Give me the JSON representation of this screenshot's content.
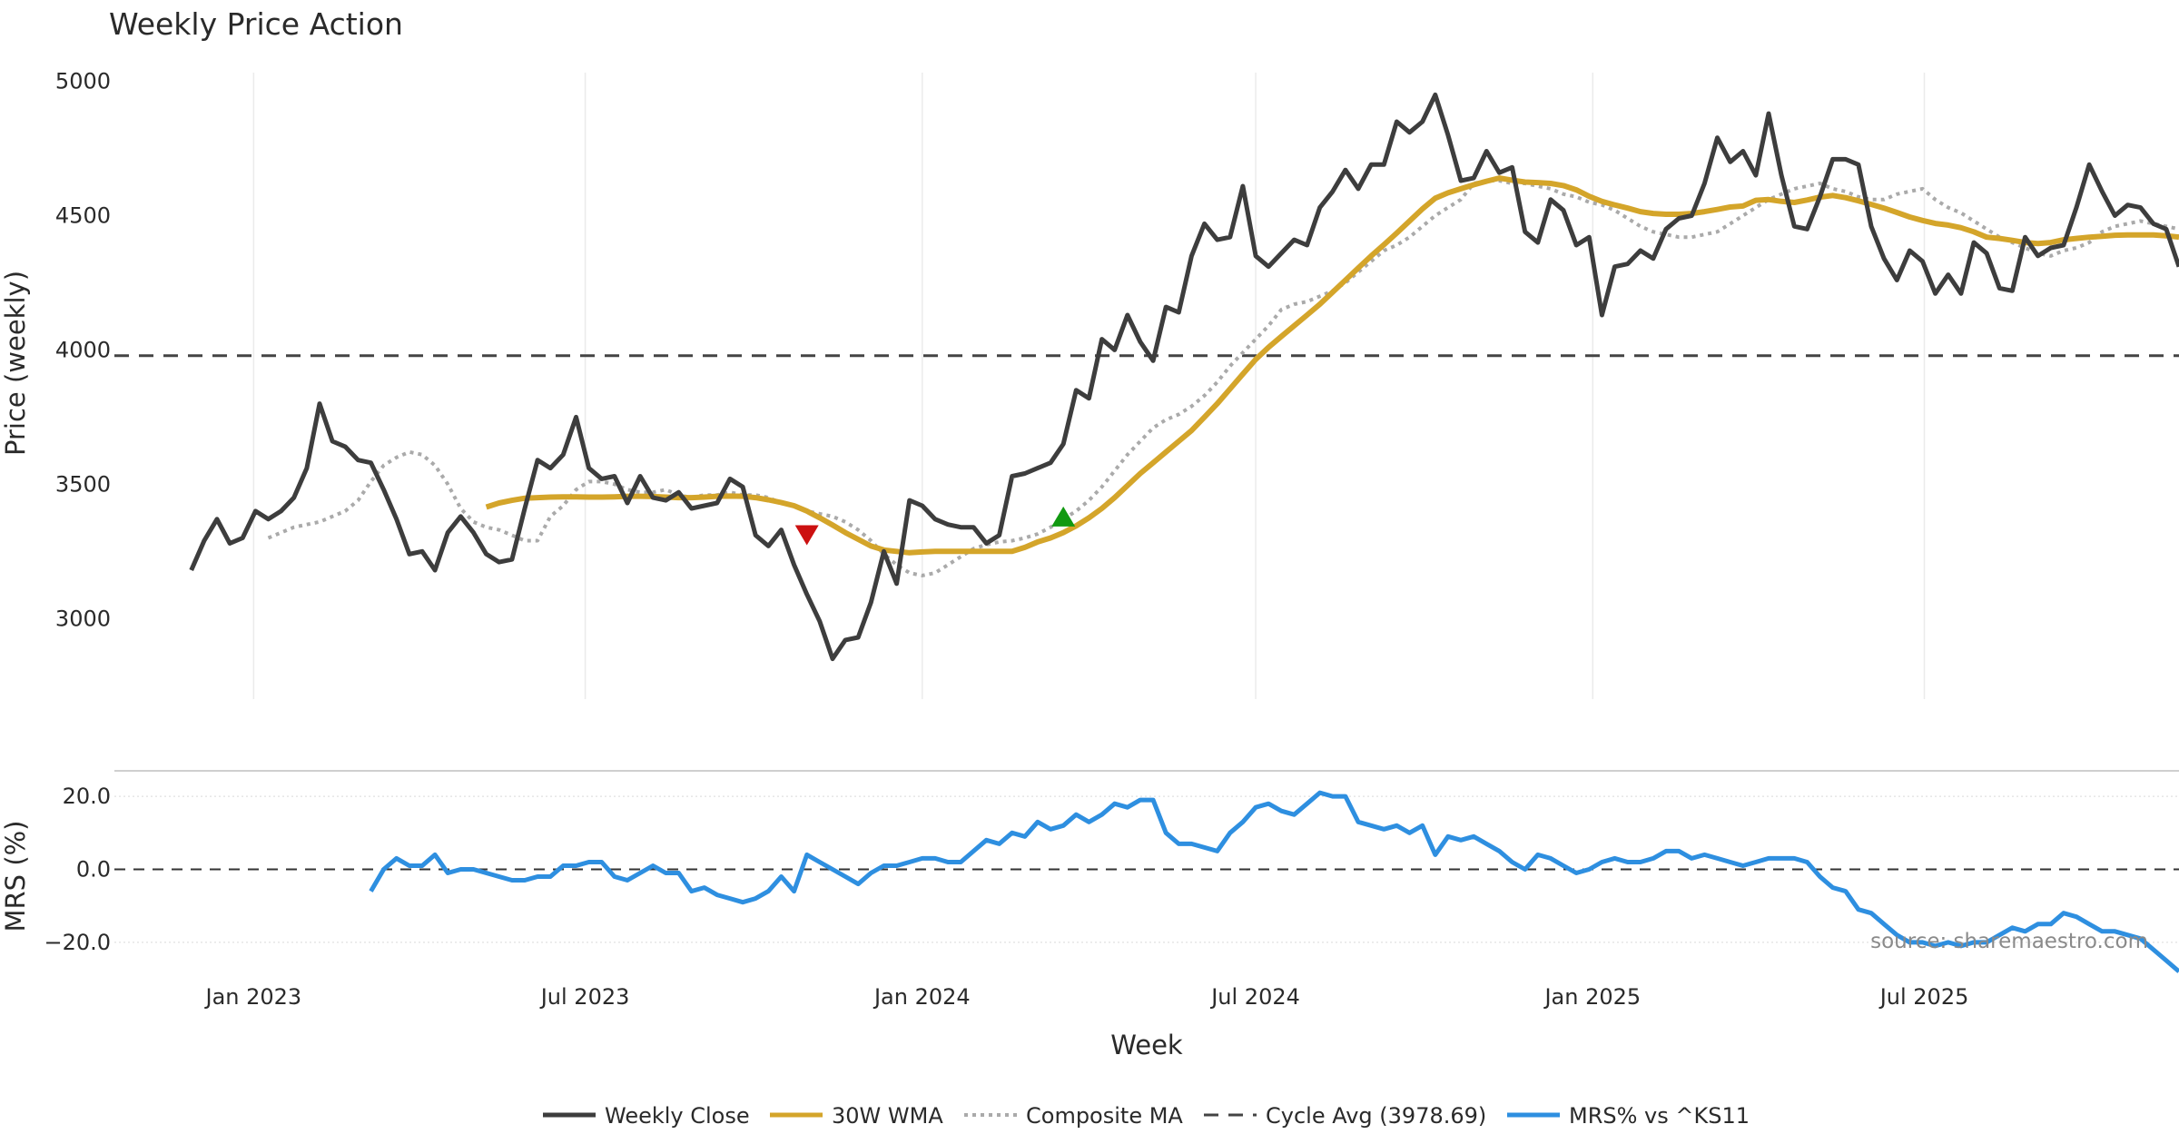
{
  "chart_data": {
    "type": "line",
    "title": "Weekly Price Action",
    "xlabel": "Week",
    "x_ticks": [
      "Jan 2023",
      "Jul 2023",
      "Jan 2024",
      "Jul 2024",
      "Jan 2025",
      "Jul 2025"
    ],
    "x_range": [
      "2022-10-17",
      "2025-11-17"
    ],
    "source_note": "source: sharemaestro.com",
    "colors": {
      "close": "#3d3d3d",
      "wma": "#d4a52a",
      "composite": "#aaaaaa",
      "cycle": "#444444",
      "mrs": "#2e8fe0",
      "sell": "#cc1111",
      "buy": "#119911"
    },
    "price_panel": {
      "ylabel": "Price (weekly)",
      "ylim": [
        2700,
        5100
      ],
      "yticks": [
        3000,
        3500,
        4000,
        4500,
        5000
      ],
      "cycle_avg": 3978.69,
      "series": [
        {
          "name": "Weekly Close",
          "values": [
            3180,
            3290,
            3370,
            3280,
            3300,
            3400,
            3370,
            3400,
            3450,
            3560,
            3800,
            3660,
            3640,
            3590,
            3580,
            3480,
            3370,
            3240,
            3250,
            3180,
            3320,
            3380,
            3320,
            3240,
            3210,
            3220,
            3410,
            3590,
            3560,
            3610,
            3750,
            3560,
            3520,
            3530,
            3430,
            3530,
            3450,
            3440,
            3470,
            3410,
            3420,
            3430,
            3520,
            3490,
            3310,
            3270,
            3330,
            3200,
            3090,
            2990,
            2850,
            2920,
            2930,
            3060,
            3250,
            3130,
            3440,
            3420,
            3370,
            3350,
            3340,
            3340,
            3280,
            3310,
            3530,
            3540,
            3560,
            3580,
            3650,
            3850,
            3820,
            4040,
            4000,
            4130,
            4030,
            3960,
            4160,
            4140,
            4350,
            4470,
            4410,
            4420,
            4610,
            4350,
            4310,
            4360,
            4410,
            4390,
            4530,
            4590,
            4670,
            4600,
            4690,
            4690,
            4850,
            4810,
            4850,
            4950,
            4800,
            4630,
            4640,
            4740,
            4660,
            4680,
            4440,
            4400,
            4560,
            4520,
            4390,
            4420,
            4130,
            4310,
            4320,
            4370,
            4340,
            4450,
            4490,
            4500,
            4620,
            4790,
            4700,
            4740,
            4650,
            4880,
            4650,
            4460,
            4450,
            4570,
            4710,
            4710,
            4690,
            4460,
            4340,
            4260,
            4370,
            4330,
            4210,
            4280,
            4210,
            4400,
            4360,
            4230,
            4220,
            4420,
            4350,
            4380,
            4390,
            4530,
            4690,
            4590,
            4500,
            4540,
            4530,
            4470,
            4450,
            4310
          ]
        },
        {
          "name": "30W WMA",
          "values": [
            3415,
            3430,
            3440,
            3448,
            3450,
            3452,
            3453,
            3453,
            3452,
            3452,
            3453,
            3455,
            3455,
            3454,
            3452,
            3450,
            3450,
            3452,
            3455,
            3456,
            3455,
            3450,
            3442,
            3432,
            3420,
            3400,
            3375,
            3348,
            3320,
            3295,
            3270,
            3255,
            3250,
            3245,
            3248,
            3250,
            3250,
            3250,
            3250,
            3250,
            3250,
            3250,
            3265,
            3285,
            3300,
            3320,
            3345,
            3375,
            3410,
            3450,
            3495,
            3540,
            3580,
            3620,
            3660,
            3700,
            3750,
            3800,
            3855,
            3910,
            3965,
            4010,
            4050,
            4090,
            4130,
            4170,
            4215,
            4260,
            4305,
            4350,
            4392,
            4435,
            4480,
            4525,
            4565,
            4585,
            4600,
            4615,
            4628,
            4640,
            4632,
            4625,
            4623,
            4620,
            4612,
            4596,
            4572,
            4553,
            4540,
            4528,
            4515,
            4508,
            4505,
            4505,
            4508,
            4515,
            4523,
            4532,
            4536,
            4557,
            4560,
            4553,
            4549,
            4558,
            4569,
            4575,
            4567,
            4555,
            4542,
            4528,
            4512,
            4495,
            4482,
            4471,
            4465,
            4455,
            4440,
            4420,
            4415,
            4408,
            4400,
            4396,
            4400,
            4410,
            4415,
            4420,
            4423,
            4427,
            4428,
            4428,
            4428,
            4425,
            4420
          ]
        },
        {
          "name": "Composite MA",
          "values": [
            3300,
            3320,
            3340,
            3350,
            3360,
            3380,
            3400,
            3440,
            3510,
            3570,
            3600,
            3620,
            3610,
            3570,
            3500,
            3410,
            3360,
            3340,
            3330,
            3310,
            3290,
            3290,
            3380,
            3420,
            3480,
            3510,
            3510,
            3500,
            3480,
            3470,
            3470,
            3480,
            3460,
            3450,
            3460,
            3460,
            3470,
            3460,
            3460,
            3450,
            3430,
            3420,
            3400,
            3390,
            3380,
            3360,
            3330,
            3290,
            3240,
            3200,
            3170,
            3160,
            3170,
            3200,
            3230,
            3260,
            3275,
            3285,
            3290,
            3300,
            3315,
            3340,
            3370,
            3400,
            3440,
            3490,
            3550,
            3610,
            3660,
            3710,
            3740,
            3760,
            3790,
            3830,
            3880,
            3940,
            3990,
            4040,
            4090,
            4150,
            4170,
            4180,
            4200,
            4220,
            4250,
            4290,
            4330,
            4370,
            4390,
            4420,
            4460,
            4500,
            4530,
            4560,
            4620,
            4630,
            4630,
            4620,
            4620,
            4610,
            4600,
            4580,
            4570,
            4550,
            4540,
            4520,
            4490,
            4460,
            4440,
            4430,
            4420,
            4420,
            4430,
            4440,
            4470,
            4500,
            4530,
            4560,
            4580,
            4600,
            4610,
            4620,
            4600,
            4590,
            4570,
            4560,
            4560,
            4580,
            4590,
            4600,
            4560,
            4530,
            4510,
            4480,
            4450,
            4420,
            4400,
            4380,
            4360,
            4350,
            4370,
            4380,
            4400,
            4440,
            4460,
            4470,
            4480,
            4470,
            4460,
            4450
          ]
        }
      ],
      "markers": [
        {
          "type": "sell",
          "date": "2023-10-30",
          "value": 3310
        },
        {
          "type": "buy",
          "date": "2024-03-18",
          "value": 3380
        }
      ]
    },
    "mrs_panel": {
      "ylabel": "MRS (%)",
      "ylim": [
        -28,
        27
      ],
      "yticks": [
        20.0,
        0.0,
        -20.0
      ],
      "reference": 0,
      "series": [
        {
          "name": "MRS% vs ^KS11",
          "values": [
            -6,
            0,
            3,
            1,
            1,
            4,
            -1,
            0,
            0,
            -1,
            -2,
            -3,
            -3,
            -2,
            -2,
            1,
            1,
            2,
            2,
            -2,
            -3,
            -1,
            1,
            -1,
            -1,
            -6,
            -5,
            -7,
            -8,
            -9,
            -8,
            -6,
            -2,
            -6,
            4,
            2,
            0,
            -2,
            -4,
            -1,
            1,
            1,
            2,
            3,
            3,
            2,
            2,
            5,
            8,
            7,
            10,
            9,
            13,
            11,
            12,
            15,
            13,
            15,
            18,
            17,
            19,
            19,
            10,
            7,
            7,
            6,
            5,
            10,
            13,
            17,
            18,
            16,
            15,
            18,
            21,
            20,
            20,
            13,
            12,
            11,
            12,
            10,
            12,
            4,
            9,
            8,
            9,
            7,
            5,
            2,
            0,
            4,
            3,
            1,
            -1,
            0,
            2,
            3,
            2,
            2,
            3,
            5,
            5,
            3,
            4,
            3,
            2,
            1,
            2,
            3,
            3,
            3,
            2,
            -2,
            -5,
            -6,
            -11,
            -12,
            -15,
            -18,
            -20,
            -20,
            -21,
            -20,
            -21,
            -20,
            -20,
            -18,
            -16,
            -17,
            -15,
            -15,
            -12,
            -13,
            -15,
            -17,
            -17,
            -18,
            -19,
            -22,
            -25,
            -28
          ]
        }
      ]
    },
    "legend": {
      "placement": "bottom-center",
      "entries": [
        "Weekly Close",
        "30W WMA",
        "Composite MA",
        "Cycle Avg (3978.69)",
        "MRS% vs ^KS11"
      ]
    }
  }
}
